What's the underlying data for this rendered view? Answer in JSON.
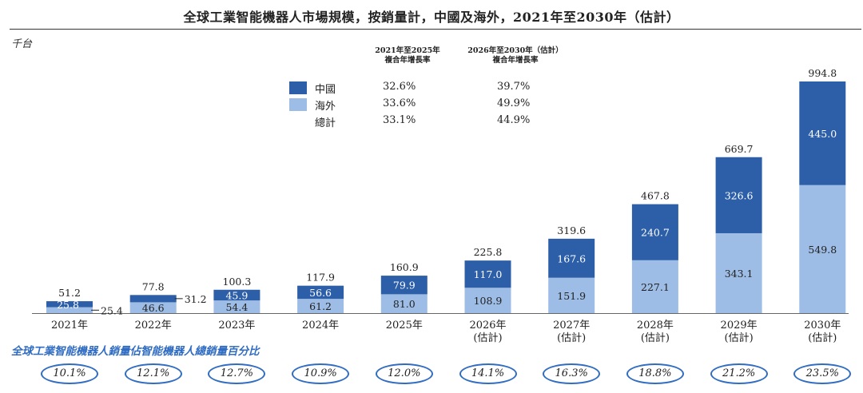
{
  "page": {
    "title": "全球工業智能機器人市場規模，按銷量計，中國及海外，2021年至2030年（估計）",
    "unit": "千台"
  },
  "legend": {
    "header_1": [
      "2021年至2025年",
      "複合年增長率"
    ],
    "header_2": [
      "2026年至2030年（估計）",
      "複合年增長率"
    ],
    "rows": [
      {
        "label": "中國",
        "color": "#2d5fa8",
        "cagr_2021_2025": "32.6%",
        "cagr_2026_2030": "39.7%"
      },
      {
        "label": "海外",
        "color": "#9dbde6",
        "cagr_2021_2025": "33.6%",
        "cagr_2026_2030": "49.9%"
      },
      {
        "label": "總計",
        "color": "",
        "cagr_2021_2025": "33.1%",
        "cagr_2026_2030": "44.9%"
      }
    ]
  },
  "colors": {
    "china": "#2d5fa8",
    "overseas": "#9dbde6",
    "oval": "#2f6cc2"
  },
  "chart_data": {
    "type": "bar",
    "stacked": true,
    "title": "全球工業智能機器人市場規模，按銷量計，中國及海外，2021年至2030年（估計）",
    "ylabel": "千台",
    "categories": [
      [
        "2021年"
      ],
      [
        "2022年"
      ],
      [
        "2023年"
      ],
      [
        "2024年"
      ],
      [
        "2025年"
      ],
      [
        "2026年",
        "(估計)"
      ],
      [
        "2027年",
        "(估計)"
      ],
      [
        "2028年",
        "(估計)"
      ],
      [
        "2029年",
        "(估計)"
      ],
      [
        "2030年",
        "(估計)"
      ]
    ],
    "series": [
      {
        "name": "海外",
        "values": [
          25.4,
          46.6,
          54.4,
          61.2,
          81.0,
          108.9,
          151.9,
          227.1,
          343.1,
          549.8
        ]
      },
      {
        "name": "中國",
        "values": [
          25.8,
          31.2,
          45.9,
          56.6,
          79.9,
          117.0,
          167.6,
          240.7,
          326.6,
          445.0
        ]
      }
    ],
    "totals": [
      51.2,
      77.8,
      100.3,
      117.9,
      160.9,
      225.8,
      319.6,
      467.8,
      669.7,
      994.8
    ],
    "ylim": [
      0,
      1050
    ],
    "grid": false,
    "legend_position": "top-center"
  },
  "share": {
    "title": "全球工業智能機器人銷量佔智能機器人總銷量百分比",
    "values": [
      "10.1%",
      "12.1%",
      "12.7%",
      "10.9%",
      "12.0%",
      "14.1%",
      "16.3%",
      "18.8%",
      "21.2%",
      "23.5%"
    ]
  }
}
